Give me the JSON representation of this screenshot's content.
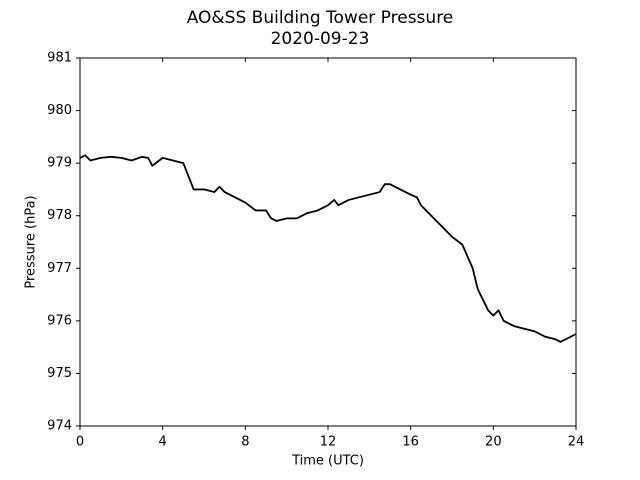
{
  "chart_data": {
    "type": "line",
    "title": "AO&SS Building Tower Pressure",
    "subtitle": "2020-09-23",
    "xlabel": "Time (UTC)",
    "ylabel": "Pressure (hPa)",
    "x": [
      0,
      0.25,
      0.5,
      1,
      1.5,
      2,
      2.5,
      3,
      3.3,
      3.5,
      4,
      4.5,
      5,
      5.25,
      5.5,
      6,
      6.5,
      6.75,
      7,
      7.5,
      8,
      8.5,
      9,
      9.25,
      9.5,
      10,
      10.5,
      11,
      11.5,
      12,
      12.3,
      12.5,
      13,
      13.5,
      14,
      14.5,
      14.75,
      15,
      15.5,
      16,
      16.3,
      16.5,
      17,
      17.5,
      18,
      18.5,
      19,
      19.25,
      19.5,
      19.75,
      20,
      20.25,
      20.5,
      21,
      21.5,
      22,
      22.5,
      23,
      23.25,
      23.5,
      24
    ],
    "series": [
      {
        "name": "Pressure",
        "color": "#000000",
        "values": [
          979.1,
          979.15,
          979.05,
          979.1,
          979.12,
          979.1,
          979.05,
          979.12,
          979.1,
          978.95,
          979.1,
          979.05,
          979.0,
          978.75,
          978.5,
          978.5,
          978.45,
          978.55,
          978.45,
          978.35,
          978.25,
          978.1,
          978.1,
          977.95,
          977.9,
          977.95,
          977.95,
          978.05,
          978.1,
          978.2,
          978.3,
          978.2,
          978.3,
          978.35,
          978.4,
          978.45,
          978.6,
          978.6,
          978.5,
          978.4,
          978.35,
          978.2,
          978.0,
          977.8,
          977.6,
          977.45,
          977.0,
          976.6,
          976.4,
          976.2,
          976.1,
          976.2,
          976.0,
          975.9,
          975.85,
          975.8,
          975.7,
          975.65,
          975.6,
          975.65,
          975.75
        ]
      }
    ],
    "xlim": [
      0,
      24
    ],
    "xticks": [
      0,
      4,
      8,
      12,
      16,
      20,
      24
    ],
    "ylim": [
      974,
      981
    ],
    "yticks": [
      974,
      975,
      976,
      977,
      978,
      979,
      980,
      981
    ],
    "grid": false
  }
}
